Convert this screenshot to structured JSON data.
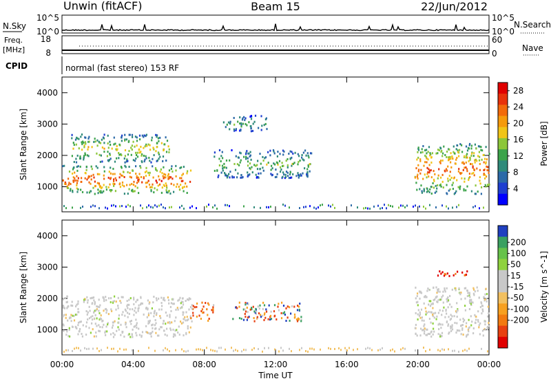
{
  "header": {
    "station": "Unwin (fitACF)",
    "beam": "Beam 15",
    "date": "22/Jun/2012"
  },
  "top_panels": {
    "nsky_label": "N.Sky",
    "nsky_ticks": [
      "10^5",
      "10^0"
    ],
    "nsearch_label": "N.Search",
    "nsearch_ticks": [
      "10^5",
      "10^0"
    ],
    "freq_label": "Freq.",
    "freq_unit": "[MHz]",
    "freq_ticks": [
      "18",
      "8"
    ],
    "nave_label": "Nave",
    "nave_ticks": [
      "60",
      "0"
    ],
    "cpid_label": "CPID",
    "cpid_text": "normal (fast stereo) 153 RF"
  },
  "chart_data": [
    {
      "type": "heatmap",
      "title": "",
      "ylabel": "Slant Range [km]",
      "xlabel": "",
      "y_ticks": [
        1000,
        2000,
        3000,
        4000
      ],
      "ylim": [
        200,
        4500
      ],
      "x_hours": [
        0,
        4,
        8,
        12,
        16,
        20,
        24
      ],
      "colorbar": {
        "label": "Power [dB]",
        "ticks": [
          4,
          8,
          12,
          16,
          20,
          24,
          28
        ],
        "range": [
          0,
          30
        ],
        "colors": [
          "#0000ff",
          "#1f3fd0",
          "#2c6aa8",
          "#2f8a7a",
          "#3ca34a",
          "#8cc63a",
          "#f0c418",
          "#f59a0c",
          "#f26a0a",
          "#e8320a",
          "#e00000"
        ]
      },
      "features": [
        {
          "region": "main echo band",
          "start_hour": 0.0,
          "end_hour": 7.2,
          "range_km": [
            800,
            1700
          ],
          "peak_power_db": 26
        },
        {
          "region": "upper band",
          "start_hour": 0.5,
          "end_hour": 6.0,
          "range_km": [
            1800,
            2700
          ],
          "peak_power_db": 18
        },
        {
          "region": "post-noon patches",
          "start_hour": 8.5,
          "end_hour": 14.0,
          "range_km": [
            1300,
            2200
          ],
          "peak_power_db": 14
        },
        {
          "region": "far-range patch",
          "start_hour": 9.0,
          "end_hour": 11.5,
          "range_km": [
            2800,
            3300
          ],
          "peak_power_db": 12
        },
        {
          "region": "evening band",
          "start_hour": 19.8,
          "end_hour": 24.0,
          "range_km": [
            800,
            2400
          ],
          "peak_power_db": 24
        }
      ]
    },
    {
      "type": "heatmap",
      "title": "",
      "ylabel": "Slant Range [km]",
      "xlabel": "Time UT",
      "x_tick_labels": [
        "00:00",
        "04:00",
        "08:00",
        "12:00",
        "16:00",
        "20:00",
        "00:00"
      ],
      "x_hours": [
        0,
        4,
        8,
        12,
        16,
        20,
        24
      ],
      "y_ticks": [
        1000,
        2000,
        3000,
        4000
      ],
      "ylim": [
        200,
        4500
      ],
      "colorbar": {
        "label": "Velocity [m s^-1]",
        "ticks": [
          200,
          100,
          50,
          15,
          -15,
          -50,
          -100,
          -200
        ],
        "colors": [
          "#2040c0",
          "#3aa060",
          "#66c24a",
          "#8fd23e",
          "#c8c8c8",
          "#c8c8c8",
          "#f2c060",
          "#f7a020",
          "#f27a10",
          "#e84010",
          "#e00000"
        ]
      },
      "features": [
        {
          "region": "low-velocity band",
          "start_hour": 0.0,
          "end_hour": 7.2,
          "range_km": [
            800,
            2100
          ],
          "velocity": "-15 to 15"
        },
        {
          "region": "dawn flow",
          "start_hour": 7.2,
          "end_hour": 8.5,
          "range_km": [
            1300,
            1900
          ],
          "velocity": "-100"
        },
        {
          "region": "mixed patch",
          "start_hour": 9.5,
          "end_hour": 13.5,
          "range_km": [
            1300,
            1900
          ],
          "velocity": "-50 to 200"
        },
        {
          "region": "evening band",
          "start_hour": 19.8,
          "end_hour": 24.0,
          "range_km": [
            800,
            2400
          ],
          "velocity": "-15 to 15"
        },
        {
          "region": "red patches",
          "start_hour": 21.0,
          "end_hour": 23.0,
          "range_km": [
            2700,
            2900
          ],
          "velocity": "-200"
        }
      ]
    }
  ]
}
